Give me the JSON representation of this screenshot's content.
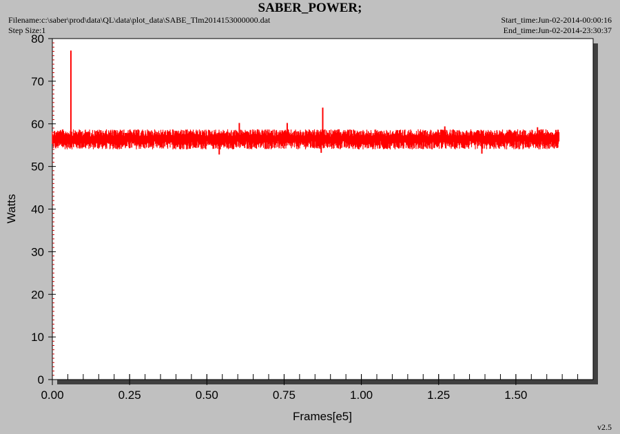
{
  "header": {
    "title": "SABER_POWER;",
    "filename": "Filename:c:\\saber\\prod\\data\\QL\\data\\plot_data\\SABE_Tlm2014153000000.dat",
    "step_size": "Step Size:1",
    "start_time": "Start_time:Jun-02-2014-00:00:16",
    "end_time": "End_time:Jun-02-2014-23:30:37",
    "version": "v2.5"
  },
  "colors": {
    "background": "#c0c0c0",
    "plot_area": "#ffffff",
    "series": "#ff0000",
    "axis": "#000000",
    "minor_ticks": "#cc0000"
  },
  "chart_data": {
    "type": "line",
    "title": "SABER_POWER;",
    "xlabel": "Frames[e5]",
    "ylabel": "Watts",
    "xlim": [
      0,
      1.75
    ],
    "ylim": [
      0,
      80
    ],
    "x_ticks": [
      0.0,
      0.25,
      0.5,
      0.75,
      1.0,
      1.25,
      1.5
    ],
    "x_tick_labels": [
      "0.00",
      "0.25",
      "0.50",
      "0.75",
      "1.00",
      "1.25",
      "1.50"
    ],
    "y_ticks": [
      0,
      10,
      20,
      30,
      40,
      50,
      60,
      70,
      80
    ],
    "y_tick_labels": [
      "0",
      "10",
      "20",
      "30",
      "40",
      "50",
      "60",
      "70",
      "80"
    ],
    "grid": false,
    "series": [
      {
        "color": "#ff0000",
        "x_start": 0.0,
        "x_end": 1.64,
        "baseline": 56.5,
        "band_low": 54.0,
        "band_high": 58.7,
        "spikes": [
          {
            "x": 0.06,
            "y": 77.2
          },
          {
            "x": 0.605,
            "y": 60.2
          },
          {
            "x": 0.76,
            "y": 60.2
          },
          {
            "x": 0.875,
            "y": 63.8
          },
          {
            "x": 1.27,
            "y": 59.4
          },
          {
            "x": 1.57,
            "y": 59.2
          }
        ],
        "dips": [
          {
            "x": 0.54,
            "y": 52.8
          },
          {
            "x": 0.87,
            "y": 53.2
          },
          {
            "x": 1.39,
            "y": 53.0
          }
        ]
      }
    ]
  }
}
